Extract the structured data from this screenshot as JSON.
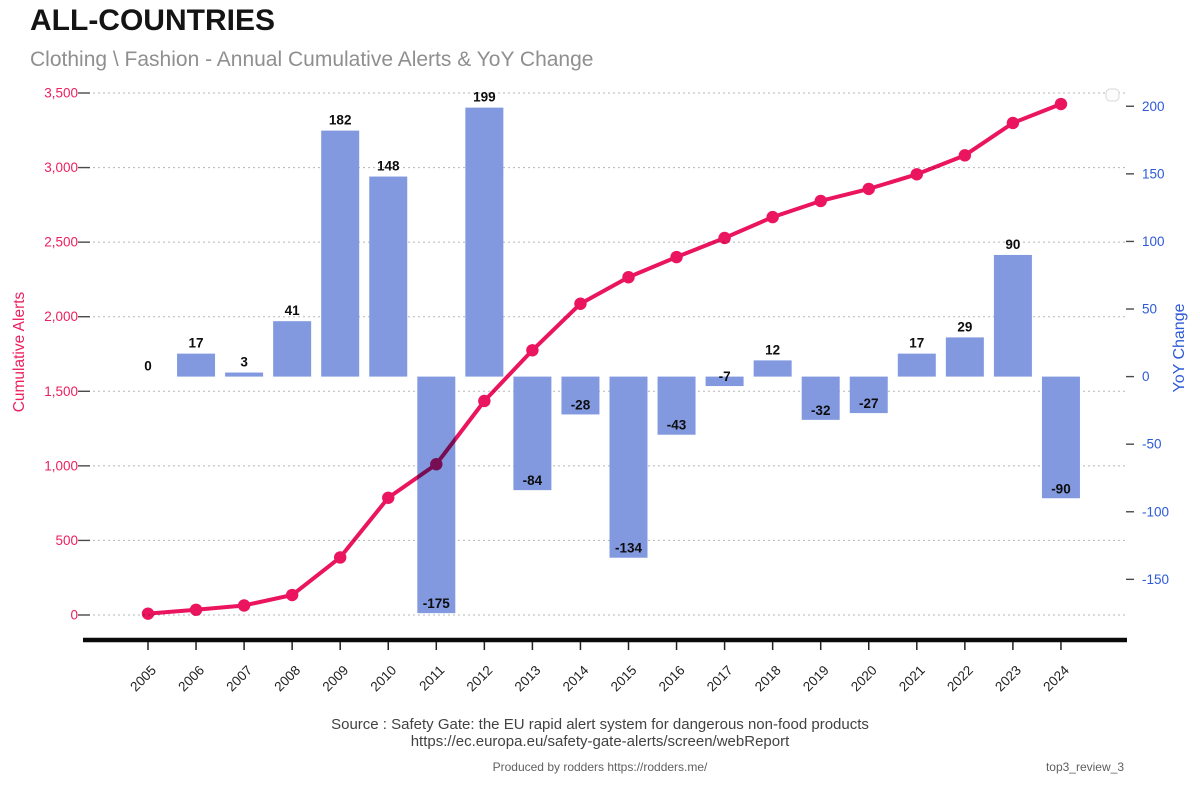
{
  "header": {
    "title": "ALL-COUNTRIES",
    "subtitle": "Clothing \\ Fashion - Annual Cumulative Alerts & YoY Change"
  },
  "footer": {
    "source_line1": "Source : Safety Gate: the EU rapid alert system for dangerous non-food products",
    "source_line2": "https://ec.europa.eu/safety-gate-alerts/screen/webReport",
    "produced_by": "Produced by rodders https://rodders.me/",
    "tag": "top3_review_3"
  },
  "chart_data": {
    "type": "combo",
    "title": "ALL-COUNTRIES",
    "subtitle": "Clothing \\ Fashion - Annual Cumulative Alerts & YoY Change",
    "categories": [
      2005,
      2006,
      2007,
      2008,
      2009,
      2010,
      2011,
      2012,
      2013,
      2014,
      2015,
      2016,
      2017,
      2018,
      2019,
      2020,
      2021,
      2022,
      2023,
      2024
    ],
    "series": [
      {
        "name": "Cumulative Alerts",
        "type": "line",
        "axis": "left",
        "color": "#EA155E",
        "values": [
          9,
          35,
          64,
          134,
          386,
          786,
          1011,
          1435,
          1775,
          2087,
          2265,
          2400,
          2528,
          2668,
          2776,
          2857,
          2955,
          3082,
          3299,
          3426
        ]
      },
      {
        "name": "YoY Change",
        "type": "bar",
        "axis": "right",
        "color": "#8299E0",
        "bar_labels": [
          "0",
          "17",
          "3",
          "41",
          "182",
          "148",
          "-175",
          "199",
          "-84",
          "-28",
          "-134",
          "-43",
          "-7",
          "12",
          "-32",
          "-27",
          "17",
          "29",
          "90",
          "-90"
        ],
        "values": [
          0,
          17,
          3,
          41,
          182,
          148,
          -175,
          199,
          -84,
          -28,
          -134,
          -43,
          -7,
          12,
          -32,
          -27,
          17,
          29,
          90,
          -90
        ]
      }
    ],
    "left_axis": {
      "label": "Cumulative Alerts",
      "color": "#EE1E5F",
      "min": 0,
      "max": 3500,
      "ticks": [
        "0",
        "500",
        "1,000",
        "1,500",
        "2,000",
        "2,500",
        "3,000",
        "3,500"
      ]
    },
    "right_axis": {
      "label": "YoY Change",
      "color": "#2D5AD7",
      "min": -175,
      "max": 200,
      "ticks": [
        "-150",
        "-100",
        "-50",
        "0",
        "50",
        "100",
        "150",
        "200"
      ]
    },
    "grid": "dotted horizontal at left-axis ticks",
    "legend_position": "top-right empty box"
  }
}
